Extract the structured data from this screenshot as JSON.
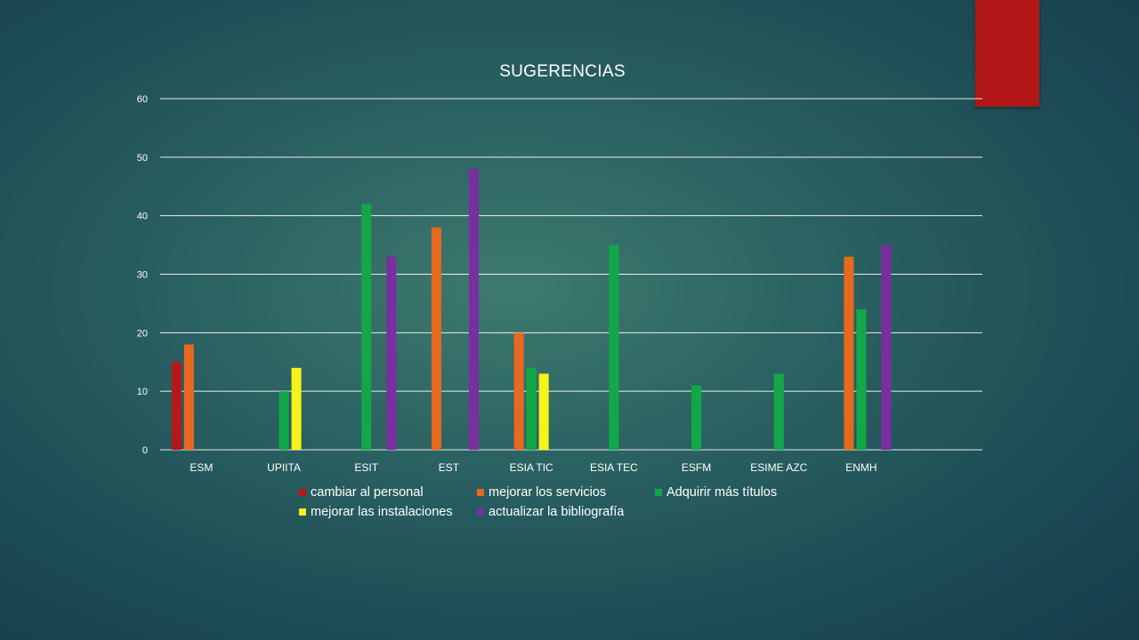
{
  "decor": {
    "accent_color": "#b01818"
  },
  "chart_data": {
    "type": "bar",
    "title": "SUGERENCIAS",
    "xlabel": "",
    "ylabel": "",
    "ylim": [
      0,
      60
    ],
    "yticks": [
      0,
      10,
      20,
      30,
      40,
      50,
      60
    ],
    "grid": true,
    "legend_position": "bottom",
    "categories": [
      "ESM",
      "UPIITA",
      "ESIT",
      "EST",
      "ESIA TIC",
      "ESIA TEC",
      "ESFM",
      "ESIME AZC",
      "ENMH"
    ],
    "series": [
      {
        "name": "cambiar al personal",
        "color": "#b5171b",
        "values": [
          15,
          null,
          null,
          null,
          null,
          null,
          null,
          null,
          null
        ]
      },
      {
        "name": "mejorar los servicios",
        "color": "#e8691e",
        "values": [
          18,
          null,
          null,
          38,
          20,
          null,
          null,
          null,
          33
        ]
      },
      {
        "name": "Adquirir más títulos",
        "color": "#12a84a",
        "values": [
          null,
          10,
          42,
          null,
          14,
          35,
          11,
          13,
          24
        ]
      },
      {
        "name": "mejorar las instalaciones",
        "color": "#f7f21a",
        "values": [
          null,
          14,
          null,
          null,
          13,
          null,
          null,
          null,
          null
        ]
      },
      {
        "name": "actualizar la bibliografía",
        "color": "#7a2fa0",
        "values": [
          null,
          null,
          33,
          48,
          null,
          null,
          null,
          null,
          35
        ]
      }
    ]
  }
}
